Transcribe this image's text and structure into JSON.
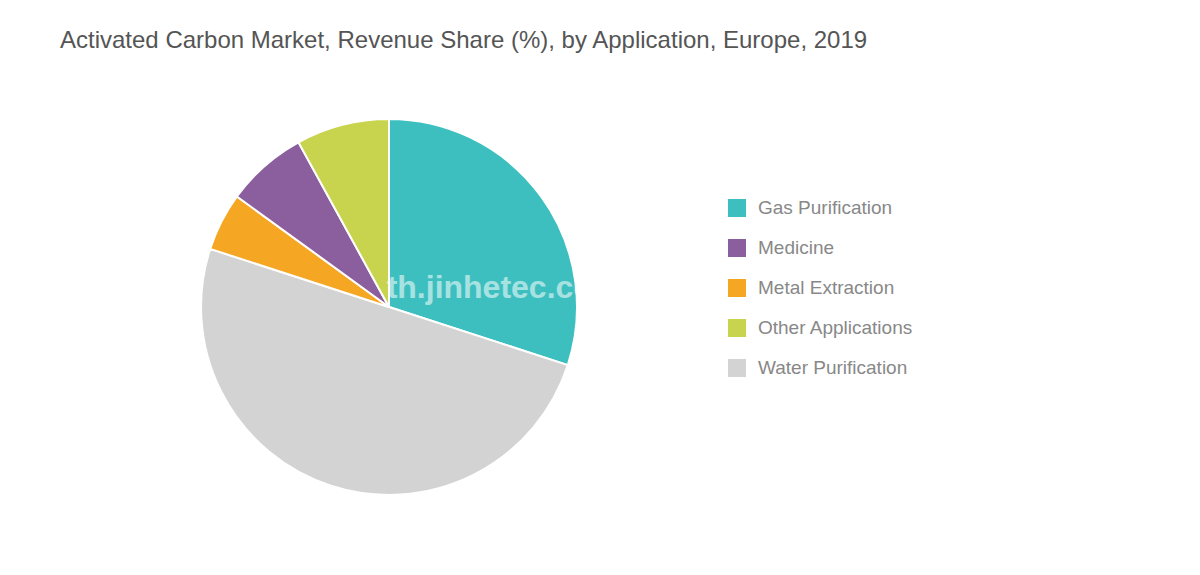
{
  "chart_data": {
    "type": "pie",
    "title": "Activated Carbon Market, Revenue Share (%), by Application, Europe, 2019",
    "categories": [
      "Gas Purification",
      "Water Purification",
      "Metal Extraction",
      "Medicine",
      "Other Applications"
    ],
    "values": [
      30,
      50,
      5,
      7,
      8
    ],
    "colors": [
      "#3dbfbf",
      "#d3d3d3",
      "#f5a623",
      "#8b5e9e",
      "#c8d44e"
    ],
    "legend": "right",
    "annotations": [
      "th.jinhetec.com"
    ]
  }
}
